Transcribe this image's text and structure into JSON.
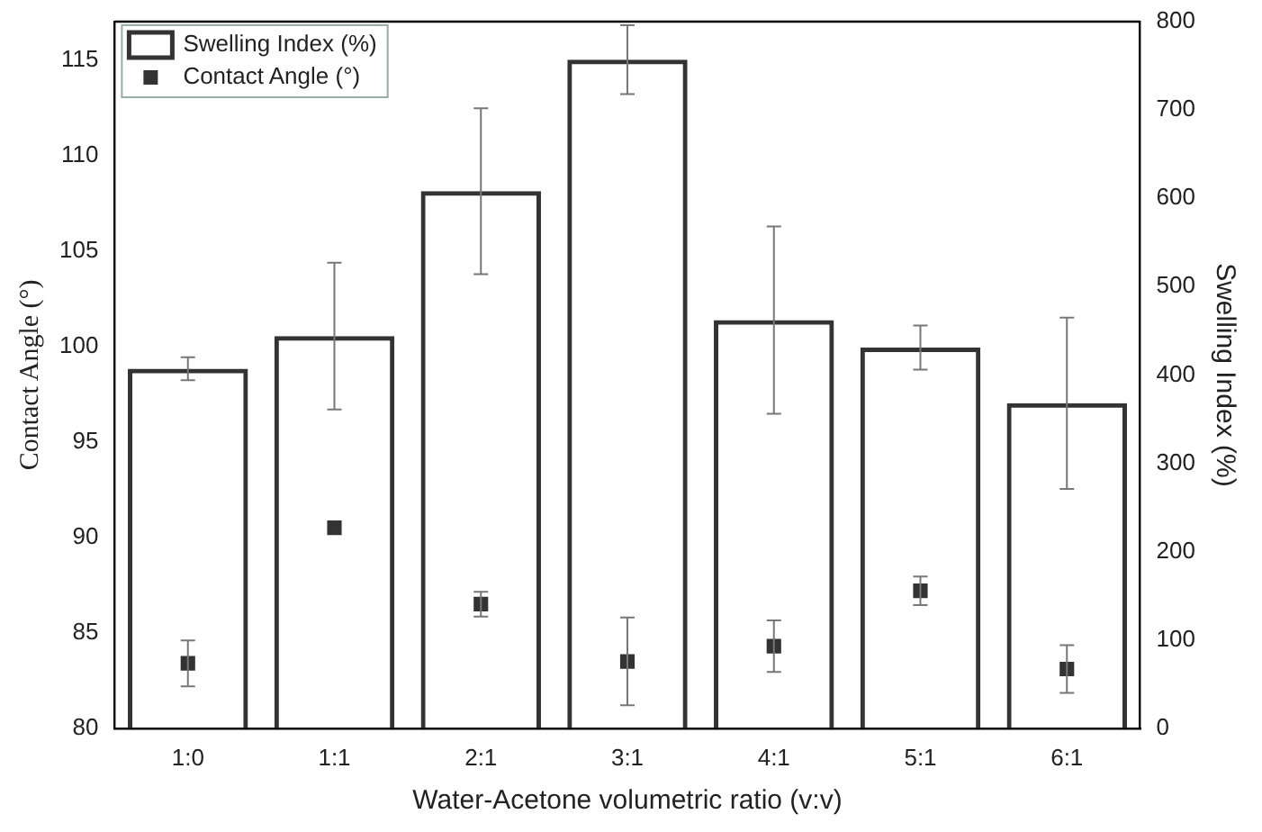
{
  "chart_data": {
    "type": "bar",
    "xlabel": "Water-Acetone volumetric ratio (v:v)",
    "ylabel": "Contact Angle (°)",
    "y2label": "Swelling Index (%)",
    "categories": [
      "1:0",
      "1:1",
      "2:1",
      "3:1",
      "4:1",
      "5:1",
      "6:1"
    ],
    "series": [
      {
        "name": "Swelling Index (%)",
        "axis": "y2",
        "color": "#333333",
        "values": [
          407,
          444,
          608,
          757,
          462,
          431,
          368
        ],
        "errors": [
          13,
          83,
          94,
          39,
          106,
          25,
          97
        ]
      },
      {
        "name": "Contact Angle (°)",
        "type": "scatter",
        "axis": "y",
        "color": "#333333",
        "marker": "square",
        "x": [
          "1:0",
          "1:1",
          "2:1",
          "3:1",
          "4:1",
          "5:1",
          "6:1"
        ],
        "values": [
          83.4,
          90.5,
          86.5,
          83.5,
          84.3,
          87.2,
          83.1
        ],
        "errors": [
          1.2,
          null,
          0.65,
          2.3,
          1.35,
          0.75,
          1.25
        ]
      }
    ],
    "ylim": [
      80,
      117
    ],
    "yticks": [
      80,
      85,
      90,
      95,
      100,
      105,
      110,
      115
    ],
    "y2lim": [
      0,
      800
    ],
    "y2ticks": [
      0,
      100,
      200,
      300,
      400,
      500,
      600,
      700,
      800
    ],
    "grid": false,
    "legend": "top left"
  }
}
